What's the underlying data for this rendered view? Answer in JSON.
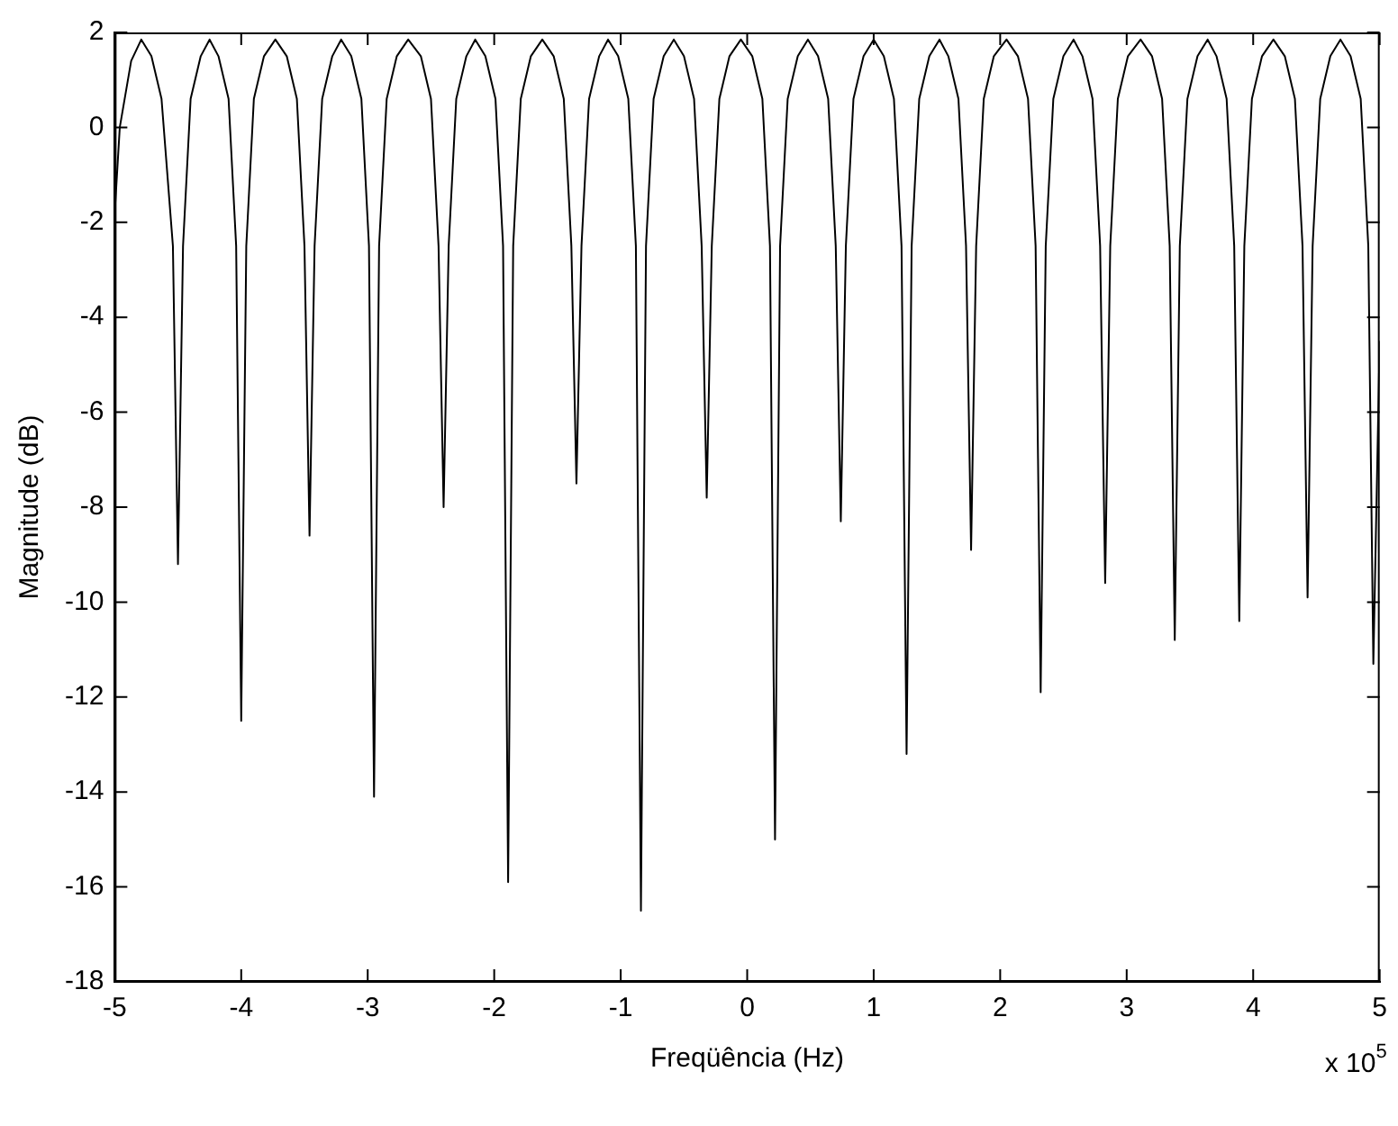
{
  "chart_data": {
    "type": "line",
    "xlabel": "Freqüência (Hz)",
    "ylabel": "Magnitude (dB)",
    "annotations": [
      "x 10$^{5}$"
    ],
    "xlim": [
      -5,
      5
    ],
    "xticks": [
      -5,
      -4,
      -3,
      -2,
      -1,
      0,
      1,
      2,
      3,
      4,
      5
    ],
    "ylim": [
      -18,
      2
    ],
    "yticks": [
      -18,
      -16,
      -14,
      -12,
      -10,
      -8,
      -6,
      -4,
      -2,
      0,
      2
    ],
    "grid": false,
    "legend": false,
    "marker": "none",
    "line_style": "solid",
    "series": [
      {
        "color": "#000000",
        "x": [
          -5.0,
          -4.96,
          -4.87,
          -4.79,
          -4.71,
          -4.63,
          -4.54,
          -4.5,
          -4.46,
          -4.4,
          -4.32,
          -4.25,
          -4.18,
          -4.1,
          -4.04,
          -4.0,
          -3.96,
          -3.9,
          -3.82,
          -3.73,
          -3.64,
          -3.56,
          -3.5,
          -3.46,
          -3.42,
          -3.36,
          -3.28,
          -3.21,
          -3.13,
          -3.05,
          -2.99,
          -2.95,
          -2.91,
          -2.85,
          -2.77,
          -2.68,
          -2.58,
          -2.5,
          -2.44,
          -2.4,
          -2.36,
          -2.3,
          -2.22,
          -2.15,
          -2.07,
          -1.99,
          -1.93,
          -1.89,
          -1.85,
          -1.79,
          -1.71,
          -1.62,
          -1.53,
          -1.45,
          -1.39,
          -1.35,
          -1.31,
          -1.25,
          -1.17,
          -1.1,
          -1.02,
          -0.94,
          -0.88,
          -0.84,
          -0.8,
          -0.74,
          -0.66,
          -0.58,
          -0.5,
          -0.42,
          -0.36,
          -0.32,
          -0.28,
          -0.22,
          -0.14,
          -0.05,
          0.04,
          0.12,
          0.18,
          0.22,
          0.26,
          0.32,
          0.4,
          0.48,
          0.56,
          0.64,
          0.7,
          0.74,
          0.78,
          0.84,
          0.92,
          1.0,
          1.08,
          1.16,
          1.22,
          1.26,
          1.3,
          1.36,
          1.44,
          1.52,
          1.59,
          1.67,
          1.73,
          1.77,
          1.81,
          1.87,
          1.95,
          2.05,
          2.14,
          2.22,
          2.28,
          2.32,
          2.36,
          2.42,
          2.5,
          2.58,
          2.65,
          2.73,
          2.79,
          2.83,
          2.87,
          2.93,
          3.01,
          3.11,
          3.2,
          3.28,
          3.34,
          3.38,
          3.42,
          3.48,
          3.56,
          3.64,
          3.71,
          3.79,
          3.85,
          3.89,
          3.93,
          3.99,
          4.07,
          4.16,
          4.25,
          4.33,
          4.39,
          4.43,
          4.47,
          4.53,
          4.61,
          4.69,
          4.77,
          4.85,
          4.91,
          4.95,
          5.0
        ],
        "values": [
          -1.8,
          0.0,
          1.4,
          1.85,
          1.5,
          0.6,
          -2.5,
          -9.2,
          -2.5,
          0.6,
          1.5,
          1.85,
          1.5,
          0.6,
          -2.5,
          -12.5,
          -2.5,
          0.6,
          1.5,
          1.85,
          1.5,
          0.6,
          -2.5,
          -8.6,
          -2.5,
          0.6,
          1.5,
          1.85,
          1.5,
          0.6,
          -2.5,
          -14.1,
          -2.5,
          0.6,
          1.5,
          1.85,
          1.5,
          0.6,
          -2.5,
          -8.0,
          -2.5,
          0.6,
          1.5,
          1.85,
          1.5,
          0.6,
          -2.5,
          -15.9,
          -2.5,
          0.6,
          1.5,
          1.85,
          1.5,
          0.6,
          -2.5,
          -7.5,
          -2.5,
          0.6,
          1.5,
          1.85,
          1.5,
          0.6,
          -2.5,
          -16.5,
          -2.5,
          0.6,
          1.5,
          1.85,
          1.5,
          0.6,
          -2.5,
          -7.8,
          -2.5,
          0.6,
          1.5,
          1.85,
          1.5,
          0.6,
          -2.5,
          -15.0,
          -2.5,
          0.6,
          1.5,
          1.85,
          1.5,
          0.6,
          -2.5,
          -8.3,
          -2.5,
          0.6,
          1.5,
          1.85,
          1.5,
          0.6,
          -2.5,
          -13.2,
          -2.5,
          0.6,
          1.5,
          1.85,
          1.5,
          0.6,
          -2.5,
          -8.9,
          -2.5,
          0.6,
          1.5,
          1.85,
          1.5,
          0.6,
          -2.5,
          -11.9,
          -2.5,
          0.6,
          1.5,
          1.85,
          1.5,
          0.6,
          -2.5,
          -9.6,
          -2.5,
          0.6,
          1.5,
          1.85,
          1.5,
          0.6,
          -2.5,
          -10.8,
          -2.5,
          0.6,
          1.5,
          1.85,
          1.5,
          0.6,
          -2.5,
          -10.4,
          -2.5,
          0.6,
          1.5,
          1.85,
          1.5,
          0.6,
          -2.5,
          -9.9,
          -2.5,
          0.6,
          1.5,
          1.85,
          1.5,
          0.6,
          -2.5,
          -11.3,
          -4.5
        ]
      }
    ]
  }
}
